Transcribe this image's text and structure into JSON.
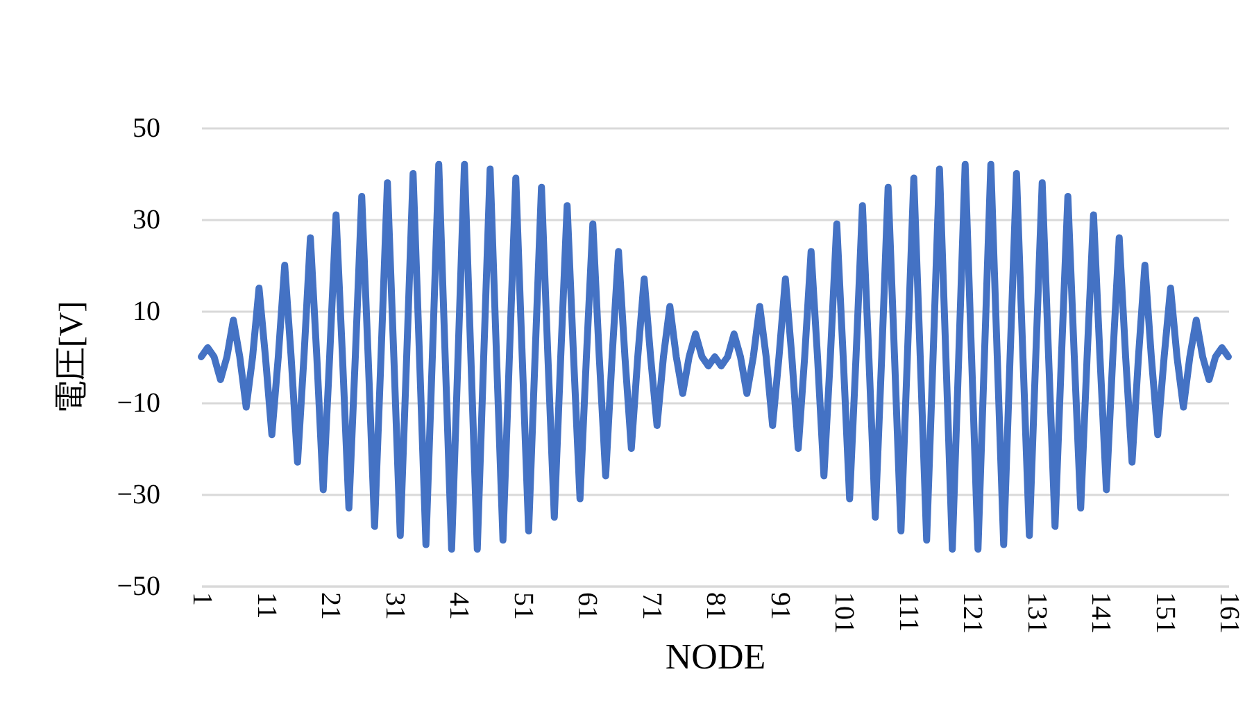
{
  "chart_data": {
    "type": "line",
    "xlabel": "NODE",
    "ylabel": "電圧[V]",
    "categories": [
      "1",
      null,
      null,
      null,
      null,
      null,
      null,
      null,
      null,
      null,
      "11",
      null,
      null,
      null,
      null,
      null,
      null,
      null,
      null,
      null,
      "21",
      null,
      null,
      null,
      null,
      null,
      null,
      null,
      null,
      null,
      "31",
      null,
      null,
      null,
      null,
      null,
      null,
      null,
      null,
      null,
      "41",
      null,
      null,
      null,
      null,
      null,
      null,
      null,
      null,
      null,
      "51",
      null,
      null,
      null,
      null,
      null,
      null,
      null,
      null,
      null,
      "61",
      null,
      null,
      null,
      null,
      null,
      null,
      null,
      null,
      null,
      "71",
      null,
      null,
      null,
      null,
      null,
      null,
      null,
      null,
      null,
      "81",
      null,
      null,
      null,
      null,
      null,
      null,
      null,
      null,
      null,
      "91",
      null,
      null,
      null,
      null,
      null,
      null,
      null,
      null,
      null,
      "101",
      null,
      null,
      null,
      null,
      null,
      null,
      null,
      null,
      null,
      "111",
      null,
      null,
      null,
      null,
      null,
      null,
      null,
      null,
      null,
      "121",
      null,
      null,
      null,
      null,
      null,
      null,
      null,
      null,
      null,
      "131",
      null,
      null,
      null,
      null,
      null,
      null,
      null,
      null,
      null,
      "141",
      null,
      null,
      null,
      null,
      null,
      null,
      null,
      null,
      null,
      "151",
      null,
      null,
      null,
      null,
      null,
      null,
      null,
      null,
      null,
      "161"
    ],
    "series": [
      {
        "color": "#4472c4",
        "values": [
          0,
          2,
          0,
          -5,
          0,
          8,
          0,
          -11,
          0,
          15,
          0,
          -17,
          0,
          20,
          0,
          -23,
          0,
          26,
          0,
          -29,
          0,
          31,
          0,
          -33,
          0,
          35,
          0,
          -37,
          0,
          38,
          0,
          -39,
          0,
          40,
          0,
          -41,
          0,
          42,
          0,
          -42,
          0,
          42,
          0,
          -42,
          0,
          41,
          0,
          -40,
          0,
          39,
          0,
          -38,
          0,
          37,
          0,
          -35,
          0,
          33,
          0,
          -31,
          0,
          29,
          0,
          -26,
          0,
          23,
          0,
          -20,
          0,
          17,
          0,
          -15,
          0,
          11,
          0,
          -8,
          0,
          5,
          0,
          -2,
          0,
          -2,
          0,
          5,
          0,
          -8,
          0,
          11,
          0,
          -15,
          0,
          17,
          0,
          -20,
          0,
          23,
          0,
          -26,
          0,
          29,
          0,
          -31,
          0,
          33,
          0,
          -35,
          0,
          37,
          0,
          -38,
          0,
          39,
          0,
          -40,
          0,
          41,
          0,
          -42,
          0,
          42,
          0,
          -42,
          0,
          42,
          0,
          -41,
          0,
          40,
          0,
          -39,
          0,
          38,
          0,
          -37,
          0,
          35,
          0,
          -33,
          0,
          31,
          0,
          -29,
          0,
          26,
          0,
          -23,
          0,
          20,
          0,
          -17,
          0,
          15,
          0,
          -11,
          0,
          8,
          0,
          -5,
          0,
          2,
          0
        ]
      }
    ],
    "ylim": [
      -50,
      50
    ],
    "yticks": [
      -50,
      -30,
      -10,
      10,
      30,
      50
    ],
    "grid": "y",
    "legend": false,
    "marker": "none",
    "line_style": "solid"
  }
}
